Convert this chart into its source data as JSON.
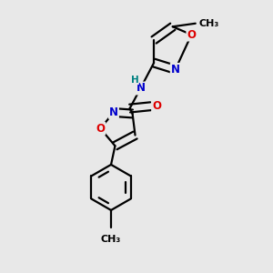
{
  "background_color": "#e8e8e8",
  "atom_colors": {
    "C": "#000000",
    "N": "#0000cd",
    "O": "#dd0000",
    "H": "#008080"
  },
  "bond_color": "#000000",
  "bond_width": 1.6,
  "font_size_atoms": 8.5,
  "figsize": [
    3.0,
    3.0
  ],
  "dpi": 100
}
